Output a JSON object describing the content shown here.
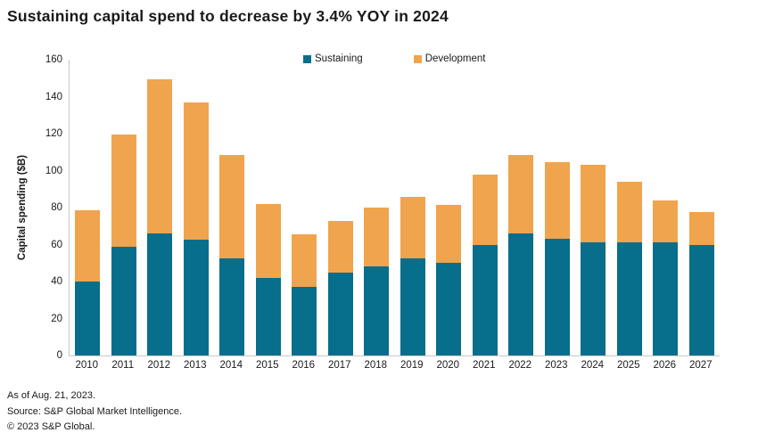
{
  "title": "Sustaining capital spend to decrease by 3.4% YOY in 2024",
  "legend": [
    {
      "label": "Sustaining",
      "color": "#076e8c"
    },
    {
      "label": "Development",
      "color": "#f0a44e"
    }
  ],
  "chart_data": {
    "type": "bar",
    "stacked": true,
    "title": "Sustaining capital spend to decrease by 3.4% YOY in 2024",
    "xlabel": "",
    "ylabel": "Capital spending ($B)",
    "ylim": [
      0,
      160
    ],
    "ytick_step": 20,
    "grid": false,
    "legend_position": "top",
    "categories": [
      "2010",
      "2011",
      "2012",
      "2013",
      "2014",
      "2015",
      "2016",
      "2017",
      "2018",
      "2019",
      "2020",
      "2021",
      "2022",
      "2023",
      "2024",
      "2025",
      "2026",
      "2027"
    ],
    "series": [
      {
        "name": "Sustaining",
        "color": "#076e8c",
        "values": [
          40,
          59,
          66,
          62.5,
          52.5,
          42,
          37,
          45,
          48,
          52.5,
          50,
          60,
          66,
          63,
          61,
          61,
          61,
          60
        ]
      },
      {
        "name": "Development",
        "color": "#f0a44e",
        "values": [
          38.5,
          60.5,
          83.5,
          74.5,
          56,
          40,
          28.5,
          28,
          32,
          33.5,
          31.5,
          38,
          42.5,
          41.5,
          42,
          33,
          23,
          17.5
        ]
      }
    ],
    "totals": [
      78.5,
      119.5,
      149.5,
      137,
      108.5,
      82,
      65.5,
      73,
      80,
      86,
      81.5,
      98,
      108.5,
      104.5,
      103,
      94,
      84,
      77.5
    ]
  },
  "footer": {
    "as_of": "As of Aug. 21, 2023.",
    "source": "Source: S&P Global Market Intelligence.",
    "copyright": "© 2023 S&P Global."
  }
}
